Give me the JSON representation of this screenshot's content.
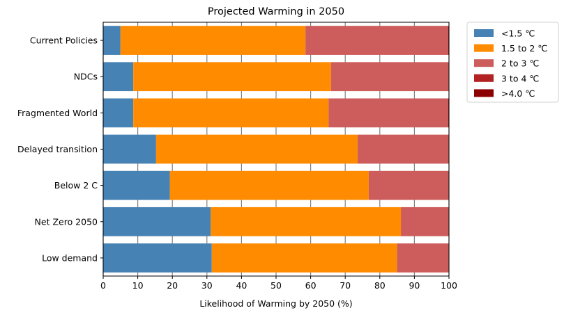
{
  "chart_data": {
    "type": "bar",
    "orientation": "horizontal",
    "stacked": true,
    "title": "Projected Warming in 2050",
    "xlabel": "Likelihood of Warming by 2050 (%)",
    "ylabel": "",
    "xlim": [
      0,
      100
    ],
    "xticks": [
      0,
      10,
      20,
      30,
      40,
      50,
      60,
      70,
      80,
      90,
      100
    ],
    "grid": "vertical",
    "legend_position": "outside-top-right",
    "categories": [
      "Current Policies",
      "NDCs",
      "Fragmented World",
      "Delayed transition",
      "Below 2 C",
      "Net Zero 2050",
      "Low demand"
    ],
    "series": [
      {
        "name": "<1.5 ℃",
        "color": "#4682b4",
        "values": [
          5.0,
          8.7,
          8.7,
          15.3,
          19.3,
          31.1,
          31.4
        ]
      },
      {
        "name": "1.5 to 2 ℃",
        "color": "#ff8c00",
        "values": [
          53.5,
          57.2,
          56.5,
          58.3,
          57.5,
          55.0,
          53.6
        ]
      },
      {
        "name": "2 to 3 ℃",
        "color": "#cd5c5c",
        "values": [
          41.3,
          34.0,
          34.6,
          26.4,
          23.2,
          13.9,
          15.0
        ]
      },
      {
        "name": "3 to 4 ℃",
        "color": "#b22222",
        "values": [
          0.2,
          0.1,
          0.2,
          0.0,
          0.0,
          0.0,
          0.0
        ]
      },
      {
        "name": ">4.0 ℃",
        "color": "#8b0000",
        "values": [
          0.0,
          0.0,
          0.0,
          0.0,
          0.0,
          0.0,
          0.0
        ]
      }
    ]
  }
}
